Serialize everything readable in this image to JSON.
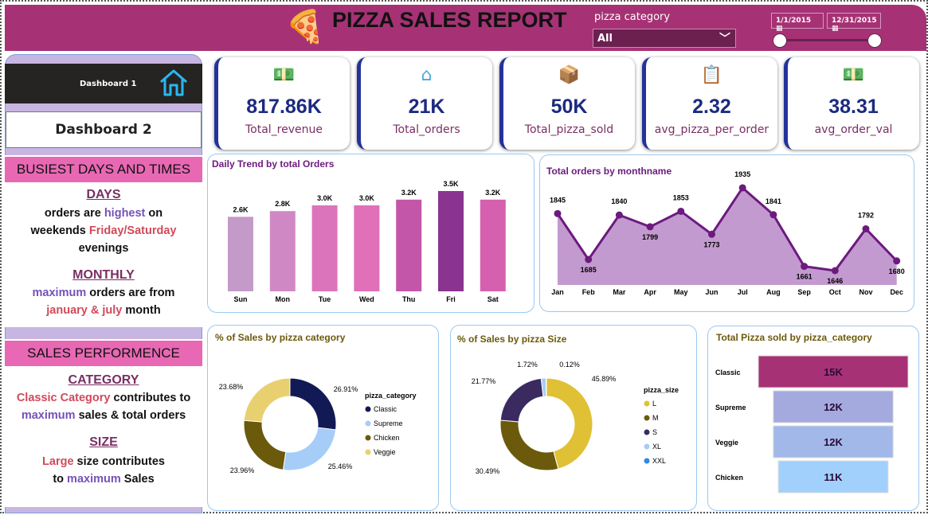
{
  "header": {
    "title": "PIZZA SALES REPORT",
    "category_label": "pizza category",
    "category_value": "All",
    "date_start": "1/1/2015",
    "date_end": "12/31/2015",
    "slider_range": [
      0,
      1
    ]
  },
  "nav": {
    "dashboard1": "Dashboard 1",
    "dashboard2": "Dashboard 2"
  },
  "insights": {
    "busiest_title": "BUSIEST DAYS AND TIMES",
    "days_heading": "DAYS",
    "days_l1a": "orders are ",
    "days_l1b": "highest",
    "days_l1c": " on",
    "days_l2a": "weekends ",
    "days_l2b": "Friday/Saturday",
    "days_l3": "evenings",
    "monthly_heading": "MONTHLY",
    "monthly_l1a": "maximum",
    "monthly_l1b": " orders are from",
    "monthly_l2a": "january & july",
    "monthly_l2b": " month",
    "perf_title": "SALES PERFORMENCE",
    "category_heading": "CATEGORY",
    "cat_l1a": "Classic Category",
    "cat_l1b": " contributes to",
    "cat_l2a": "maximum",
    "cat_l2b": " sales & total orders",
    "size_heading": "SIZE",
    "size_l1a": "Large",
    "size_l1b": " size contributes",
    "size_l2a": "to ",
    "size_l2b": "maximum",
    "size_l2c": " Sales"
  },
  "kpis": [
    {
      "value": "817.86K",
      "label": "Total_revenue",
      "icon": "money-icon"
    },
    {
      "value": "21K",
      "label": "Total_orders",
      "icon": "home-icon"
    },
    {
      "value": "50K",
      "label": "Total_pizza_sold",
      "icon": "delivery-icon"
    },
    {
      "value": "2.32",
      "label": "avg_pizza_per_order",
      "icon": "clipboard-icon"
    },
    {
      "value": "38.31",
      "label": "avg_order_val",
      "icon": "money-icon"
    }
  ],
  "chart_data": [
    {
      "type": "bar",
      "title": "Daily Trend by total Orders",
      "categories": [
        "Sun",
        "Mon",
        "Tue",
        "Wed",
        "Thu",
        "Fri",
        "Sat"
      ],
      "values": [
        2.6,
        2.8,
        3.0,
        3.0,
        3.2,
        3.5,
        3.2
      ],
      "labels": [
        "2.6K",
        "2.8K",
        "3.0K",
        "3.0K",
        "3.2K",
        "3.5K",
        "3.2K"
      ],
      "colors": [
        "#c49ac8",
        "#d088c4",
        "#dc74bc",
        "#e070b8",
        "#c456aa",
        "#8a3490",
        "#d660b0"
      ]
    },
    {
      "type": "area",
      "title": "Total orders by monthname",
      "categories": [
        "Jan",
        "Feb",
        "Mar",
        "Apr",
        "May",
        "Jun",
        "Jul",
        "Aug",
        "Sep",
        "Oct",
        "Nov",
        "Dec"
      ],
      "values": [
        1845,
        1685,
        1840,
        1799,
        1853,
        1773,
        1935,
        1841,
        1661,
        1646,
        1792,
        1680
      ],
      "line_color": "#6c1a7e",
      "fill_color": "#c39ad0"
    },
    {
      "type": "pie",
      "title": "% of Sales by pizza category",
      "legend_title": "pizza_category",
      "categories": [
        "Classic",
        "Supreme",
        "Chicken",
        "Veggie"
      ],
      "legend_order": [
        "Classic",
        "Supreme",
        "Chicken",
        "Veggie"
      ],
      "values": [
        26.91,
        25.46,
        23.96,
        23.68
      ],
      "labels": [
        "26.91%",
        "25.46%",
        "23.96%",
        "23.68%"
      ],
      "colors": [
        "#121a55",
        "#a6cdf8",
        "#6b5a0c",
        "#e8d070"
      ]
    },
    {
      "type": "pie",
      "title": "% of Sales by pizza Size",
      "legend_title": "pizza_size",
      "categories": [
        "L",
        "M",
        "S",
        "XL",
        "XXL"
      ],
      "values": [
        45.89,
        30.49,
        21.77,
        1.72,
        0.12
      ],
      "labels": [
        "45.89%",
        "30.49%",
        "21.77%",
        "1.72%",
        "0.12%"
      ],
      "colors": [
        "#e0c034",
        "#6b5a0c",
        "#3a2a60",
        "#a6cdf8",
        "#2e8ae6"
      ]
    },
    {
      "type": "bar",
      "orientation": "funnel",
      "title": "Total Pizza sold by pizza_category",
      "categories": [
        "Classic",
        "Supreme",
        "Veggie",
        "Chicken"
      ],
      "values": [
        15,
        12,
        12,
        11
      ],
      "labels": [
        "15K",
        "12K",
        "12K",
        "11K"
      ],
      "colors": [
        "#a63275",
        "#a4aade",
        "#a2b8e8",
        "#a2d0fc"
      ]
    }
  ]
}
